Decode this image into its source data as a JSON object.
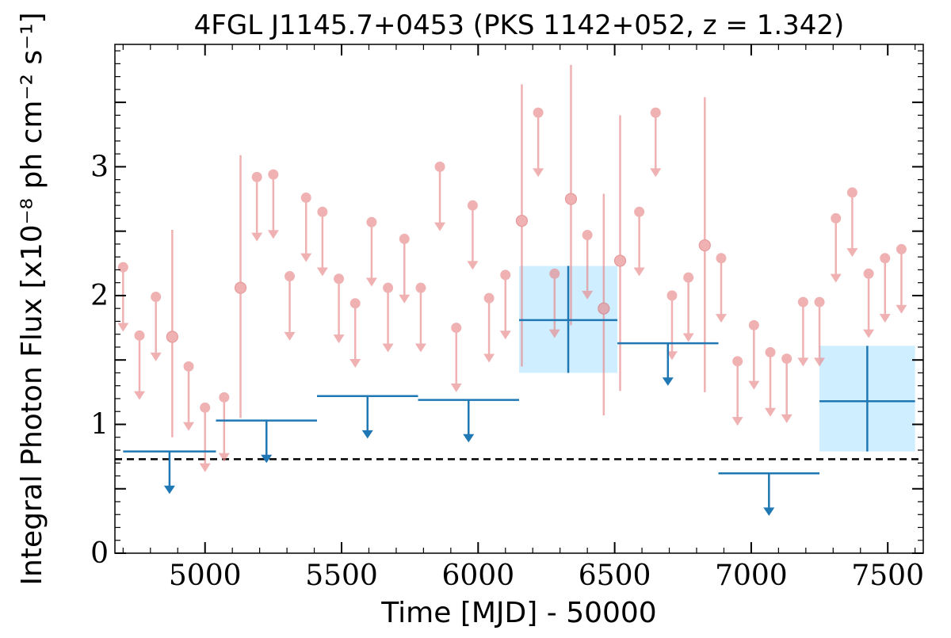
{
  "chart_data": {
    "type": "scatter",
    "title": "4FGL J1145.7+0453 (PKS 1142+052, z = 1.342)",
    "xlabel": "Time [MJD] - 50000",
    "ylabel": "Integral Photon Flux [x10⁻⁸ ph cm⁻² s⁻¹]",
    "xlim": [
      4670,
      7630
    ],
    "ylim": [
      0,
      3.95
    ],
    "x_ticks": [
      5000,
      5500,
      6000,
      6500,
      7000,
      7500
    ],
    "y_ticks": [
      0,
      1,
      2,
      3
    ],
    "colors": {
      "short_bins": "#e8888a",
      "long_bins": "#1f77b4",
      "long_bins_error_fill": "#cfeeff",
      "reference_line": "#000000"
    },
    "reference_level": 0.73,
    "short_bin_upper_limits": [
      {
        "x": 4700,
        "y": 2.22
      },
      {
        "x": 4760,
        "y": 1.69
      },
      {
        "x": 4820,
        "y": 1.99
      },
      {
        "x": 4940,
        "y": 1.45
      },
      {
        "x": 5000,
        "y": 1.13
      },
      {
        "x": 5070,
        "y": 1.21
      },
      {
        "x": 5190,
        "y": 2.92
      },
      {
        "x": 5250,
        "y": 2.94
      },
      {
        "x": 5310,
        "y": 2.15
      },
      {
        "x": 5370,
        "y": 2.76
      },
      {
        "x": 5430,
        "y": 2.65
      },
      {
        "x": 5490,
        "y": 2.13
      },
      {
        "x": 5550,
        "y": 1.94
      },
      {
        "x": 5610,
        "y": 2.57
      },
      {
        "x": 5670,
        "y": 2.06
      },
      {
        "x": 5730,
        "y": 2.44
      },
      {
        "x": 5790,
        "y": 2.06
      },
      {
        "x": 5860,
        "y": 3.0
      },
      {
        "x": 5920,
        "y": 1.75
      },
      {
        "x": 5980,
        "y": 2.7
      },
      {
        "x": 6040,
        "y": 1.98
      },
      {
        "x": 6100,
        "y": 2.16
      },
      {
        "x": 6220,
        "y": 3.42
      },
      {
        "x": 6280,
        "y": 2.17
      },
      {
        "x": 6400,
        "y": 2.47
      },
      {
        "x": 6590,
        "y": 2.65
      },
      {
        "x": 6650,
        "y": 3.42
      },
      {
        "x": 6710,
        "y": 2.0
      },
      {
        "x": 6770,
        "y": 2.14
      },
      {
        "x": 6890,
        "y": 2.29
      },
      {
        "x": 6950,
        "y": 1.49
      },
      {
        "x": 7010,
        "y": 1.77
      },
      {
        "x": 7070,
        "y": 1.56
      },
      {
        "x": 7130,
        "y": 1.51
      },
      {
        "x": 7190,
        "y": 1.95
      },
      {
        "x": 7250,
        "y": 1.95
      },
      {
        "x": 7310,
        "y": 2.6
      },
      {
        "x": 7370,
        "y": 2.8
      },
      {
        "x": 7430,
        "y": 2.17
      },
      {
        "x": 7490,
        "y": 2.29
      },
      {
        "x": 7550,
        "y": 2.36
      }
    ],
    "short_bin_detections": [
      {
        "x": 4880,
        "y": 1.68,
        "ylo": 0.9,
        "yhi": 2.51
      },
      {
        "x": 5130,
        "y": 2.06,
        "ylo": 1.05,
        "yhi": 3.09
      },
      {
        "x": 6160,
        "y": 2.58,
        "ylo": 1.45,
        "yhi": 3.64
      },
      {
        "x": 6340,
        "y": 2.75,
        "ylo": 1.77,
        "yhi": 3.79
      },
      {
        "x": 6460,
        "y": 1.9,
        "ylo": 1.07,
        "yhi": 2.79
      },
      {
        "x": 6520,
        "y": 2.27,
        "ylo": 1.26,
        "yhi": 3.4
      },
      {
        "x": 6830,
        "y": 2.39,
        "ylo": 1.25,
        "yhi": 3.54
      }
    ],
    "long_bin_upper_limits": [
      {
        "x0": 4700,
        "x1": 5040,
        "y": 0.79
      },
      {
        "x0": 5040,
        "x1": 5410,
        "y": 1.03
      },
      {
        "x0": 5410,
        "x1": 5780,
        "y": 1.22
      },
      {
        "x0": 5780,
        "x1": 6150,
        "y": 1.19
      },
      {
        "x0": 6510,
        "x1": 6880,
        "y": 1.63
      },
      {
        "x0": 6880,
        "x1": 7250,
        "y": 0.62
      }
    ],
    "long_bin_detections": [
      {
        "x0": 6150,
        "x1": 6510,
        "y": 1.81,
        "ylo": 1.4,
        "yhi": 2.23
      },
      {
        "x0": 7250,
        "x1": 7600,
        "y": 1.18,
        "ylo": 0.79,
        "yhi": 1.61
      }
    ]
  }
}
